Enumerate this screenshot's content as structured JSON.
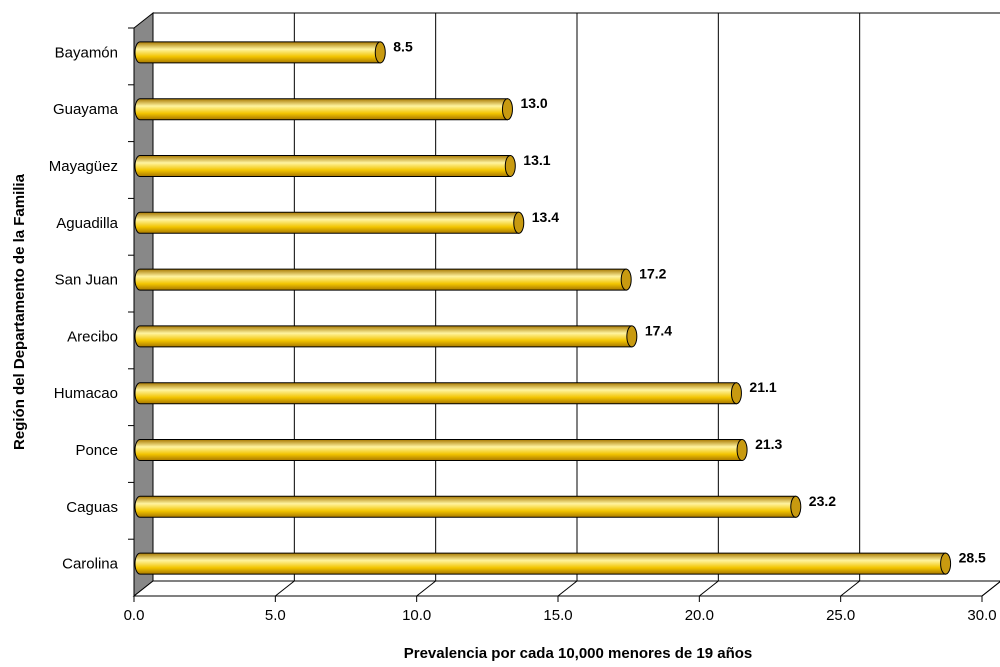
{
  "chart_data": {
    "type": "bar",
    "orientation": "horizontal",
    "style": "3d-cylinder",
    "title": "",
    "xlabel": "Prevalencia por cada 10,000 menores de 19 años",
    "ylabel": "Región del Departamento de la Familia",
    "categories": [
      "Bayamón",
      "Guayama",
      "Mayagüez",
      "Aguadilla",
      "San Juan",
      "Arecibo",
      "Humacao",
      "Ponce",
      "Caguas",
      "Carolina"
    ],
    "values": [
      8.5,
      13.0,
      13.1,
      13.4,
      17.2,
      17.4,
      21.1,
      21.3,
      23.2,
      28.5
    ],
    "value_labels": [
      "8.5",
      "13.0",
      "13.1",
      "13.4",
      "17.2",
      "17.4",
      "21.1",
      "21.3",
      "23.2",
      "28.5"
    ],
    "xlim": [
      0,
      30
    ],
    "x_ticks": [
      "0.0",
      "5.0",
      "10.0",
      "15.0",
      "20.0",
      "25.0",
      "30.0"
    ],
    "grid": "vertical",
    "legend": "none",
    "colors": {
      "bar_light": "#FFF4A0",
      "bar_mid": "#F2C400",
      "bar_dark": "#A87800",
      "bar_cap": "#C89A10",
      "wall": "#888888",
      "gridline": "#000000"
    }
  }
}
